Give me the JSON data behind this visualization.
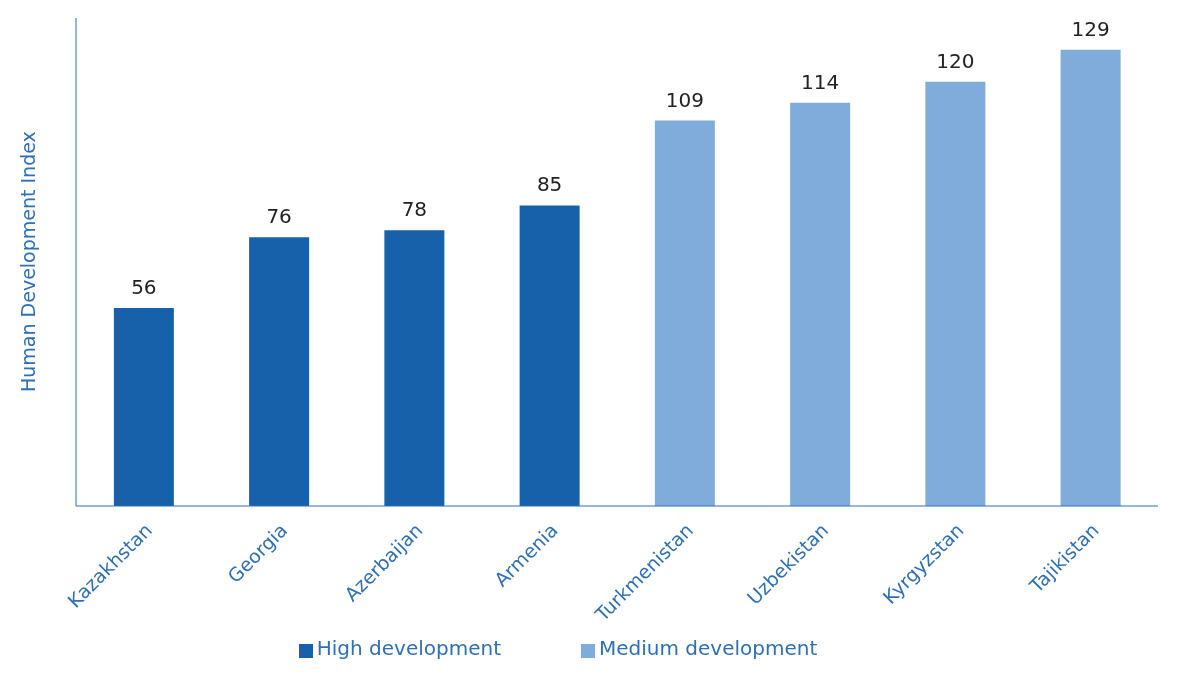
{
  "chart_data": {
    "type": "bar",
    "ylabel": "Human Development Index",
    "categories": [
      "Kazakhstan",
      "Georgia",
      "Azerbaijan",
      "Armenia",
      "Turkmenistan",
      "Uzbekistan",
      "Kyrgyzstan",
      "Tajikistan"
    ],
    "series": [
      {
        "name": "High development",
        "color": "#1761ab",
        "values": [
          56,
          76,
          78,
          85,
          null,
          null,
          null,
          null
        ]
      },
      {
        "name": "Medium development",
        "color": "#80acdc",
        "values": [
          null,
          null,
          null,
          null,
          109,
          114,
          120,
          129
        ]
      }
    ],
    "ylim": [
      0,
      138
    ],
    "tick_labels": "x",
    "data_labels": true,
    "grid": false,
    "legend": "bottom"
  }
}
